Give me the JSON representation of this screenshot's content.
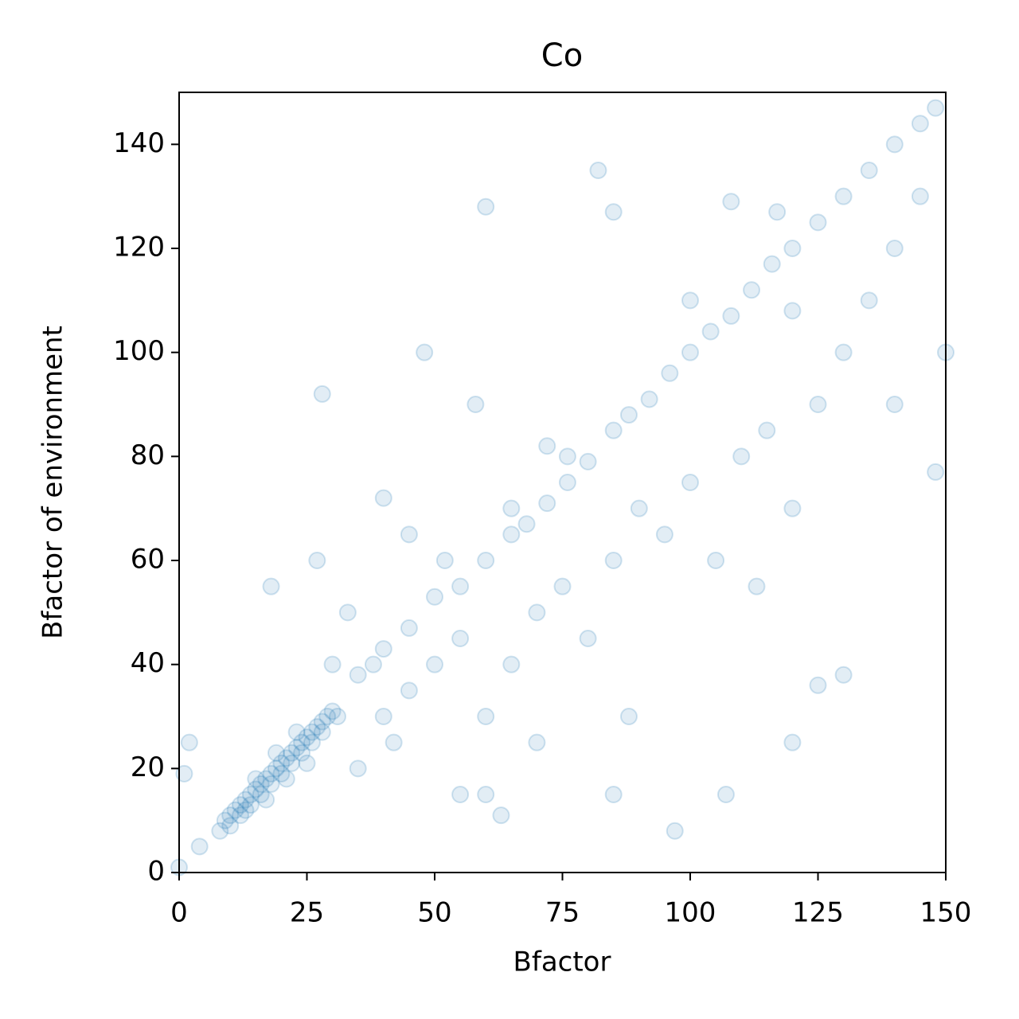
{
  "chart_data": {
    "type": "scatter",
    "title": "Co",
    "x_label": "Bfactor",
    "y_label": "Bfactor of environment",
    "color": "#1f77b4",
    "x": [
      8,
      9,
      10,
      11,
      12,
      13,
      14,
      15,
      16,
      17,
      18,
      19,
      20,
      21,
      22,
      23,
      24,
      25,
      26,
      27,
      28,
      29,
      30,
      31,
      12,
      14,
      16,
      18,
      20,
      22,
      24,
      26,
      28,
      10,
      13,
      15,
      19,
      23,
      17,
      21,
      25,
      35,
      38,
      40,
      45,
      50,
      55,
      60,
      65,
      68,
      72,
      76,
      80,
      85,
      88,
      92,
      96,
      100,
      104,
      108,
      112,
      116,
      120,
      125,
      130,
      135,
      140,
      145,
      148,
      40,
      45,
      50,
      55,
      60,
      65,
      70,
      75,
      80,
      85,
      90,
      95,
      100,
      105,
      110,
      115,
      120,
      125,
      130,
      135,
      140,
      145,
      60,
      70,
      85,
      97,
      107,
      120,
      130,
      150,
      148,
      140,
      113,
      125,
      88,
      76,
      72,
      58,
      65,
      52,
      45,
      30,
      33,
      27,
      18,
      28,
      60,
      82,
      108,
      117,
      85,
      48,
      40,
      120,
      100,
      35,
      42,
      55,
      63,
      0,
      1,
      2,
      4
    ],
    "y": [
      8,
      10,
      11,
      12,
      13,
      14,
      15,
      16,
      17,
      18,
      19,
      20,
      21,
      22,
      23,
      24,
      25,
      26,
      27,
      28,
      29,
      30,
      31,
      30,
      11,
      13,
      15,
      17,
      19,
      21,
      23,
      25,
      27,
      9,
      12,
      18,
      23,
      27,
      14,
      18,
      21,
      38,
      40,
      43,
      47,
      53,
      55,
      60,
      65,
      67,
      71,
      75,
      79,
      85,
      88,
      91,
      96,
      100,
      104,
      107,
      112,
      117,
      120,
      125,
      130,
      135,
      140,
      144,
      147,
      30,
      35,
      40,
      45,
      30,
      40,
      50,
      55,
      45,
      60,
      70,
      65,
      75,
      60,
      80,
      85,
      70,
      90,
      100,
      110,
      120,
      130,
      15,
      25,
      15,
      8,
      15,
      25,
      38,
      100,
      77,
      90,
      55,
      36,
      30,
      80,
      82,
      90,
      70,
      60,
      65,
      40,
      50,
      60,
      55,
      92,
      128,
      135,
      129,
      127,
      127,
      100,
      72,
      108,
      110,
      20,
      25,
      15,
      11,
      1,
      19,
      25,
      5
    ],
    "xlim": [
      0,
      150
    ],
    "ylim": [
      0,
      150
    ],
    "xticks": [
      0,
      25,
      50,
      75,
      100,
      125,
      150
    ],
    "yticks": [
      0,
      20,
      40,
      60,
      80,
      100,
      120,
      140
    ]
  }
}
